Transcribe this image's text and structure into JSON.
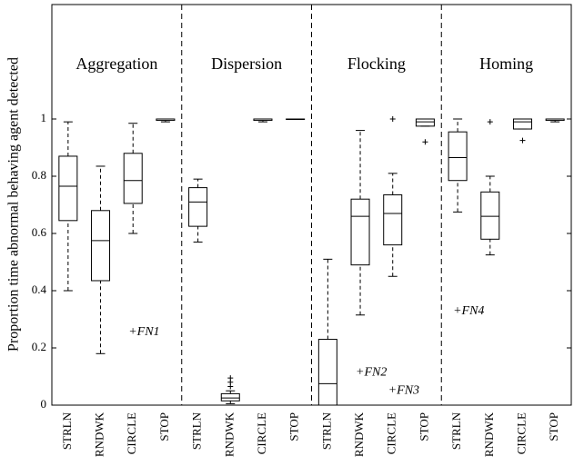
{
  "chart_data": {
    "type": "box",
    "ylabel": "Proportion time abnormal behaving agent detected",
    "groups": [
      "Aggregation",
      "Dispersion",
      "Flocking",
      "Homing"
    ],
    "categories": [
      "STRLN",
      "RNDWK",
      "CIRCLE",
      "STOP",
      "STRLN",
      "RNDWK",
      "CIRCLE",
      "STOP",
      "STRLN",
      "RNDWK",
      "CIRCLE",
      "STOP",
      "STRLN",
      "RNDWK",
      "CIRCLE",
      "STOP"
    ],
    "boxes": [
      {
        "min": 0.4,
        "q1": 0.645,
        "median": 0.765,
        "q3": 0.87,
        "max": 0.99,
        "outliers": []
      },
      {
        "min": 0.18,
        "q1": 0.435,
        "median": 0.575,
        "q3": 0.68,
        "max": 0.835,
        "outliers": []
      },
      {
        "min": 0.6,
        "q1": 0.705,
        "median": 0.785,
        "q3": 0.88,
        "max": 0.985,
        "outliers": []
      },
      {
        "min": 0.99,
        "q1": 0.995,
        "median": 1.0,
        "q3": 1.0,
        "max": 1.0,
        "outliers": []
      },
      {
        "min": 0.57,
        "q1": 0.625,
        "median": 0.71,
        "q3": 0.76,
        "max": 0.79,
        "outliers": []
      },
      {
        "min": 0.005,
        "q1": 0.015,
        "median": 0.025,
        "q3": 0.04,
        "max": 0.05,
        "outliers": [
          0.065,
          0.08,
          0.095
        ]
      },
      {
        "min": 0.99,
        "q1": 0.995,
        "median": 1.0,
        "q3": 1.0,
        "max": 1.0,
        "outliers": []
      },
      {
        "min": 1.0,
        "q1": 1.0,
        "median": 1.0,
        "q3": 1.0,
        "max": 1.0,
        "outliers": []
      },
      {
        "min": 0,
        "q1": 0,
        "median": 0.075,
        "q3": 0.23,
        "max": 0.51,
        "outliers": []
      },
      {
        "min": 0.315,
        "q1": 0.49,
        "median": 0.66,
        "q3": 0.72,
        "max": 0.96,
        "outliers": []
      },
      {
        "min": 0.45,
        "q1": 0.56,
        "median": 0.67,
        "q3": 0.735,
        "max": 0.81,
        "outliers": [
          1.0
        ]
      },
      {
        "min": 0.975,
        "q1": 0.975,
        "median": 0.99,
        "q3": 1.0,
        "max": 1.0,
        "outliers": [
          0.92
        ]
      },
      {
        "min": 0.675,
        "q1": 0.785,
        "median": 0.865,
        "q3": 0.955,
        "max": 1.0,
        "outliers": []
      },
      {
        "min": 0.525,
        "q1": 0.58,
        "median": 0.66,
        "q3": 0.745,
        "max": 0.8,
        "outliers": [
          0.99
        ]
      },
      {
        "min": 0.965,
        "q1": 0.965,
        "median": 0.99,
        "q3": 1.0,
        "max": 1.0,
        "outliers": [
          0.925
        ]
      },
      {
        "min": 0.99,
        "q1": 0.995,
        "median": 1.0,
        "q3": 1.0,
        "max": 1.0,
        "outliers": []
      }
    ],
    "annotations": [
      {
        "text": "+FN1",
        "x": 2,
        "y": 0.255
      },
      {
        "text": "+FN2",
        "x": 9,
        "y": 0.114
      },
      {
        "text": "+FN3",
        "x": 10,
        "y": 0.05
      },
      {
        "text": "+FN4",
        "x": 12,
        "y": 0.327
      }
    ],
    "ylim": [
      0,
      1.4
    ],
    "yticks": [
      0,
      0.2,
      0.4,
      0.6,
      0.8,
      1
    ],
    "grid": false,
    "color": "#000000"
  }
}
